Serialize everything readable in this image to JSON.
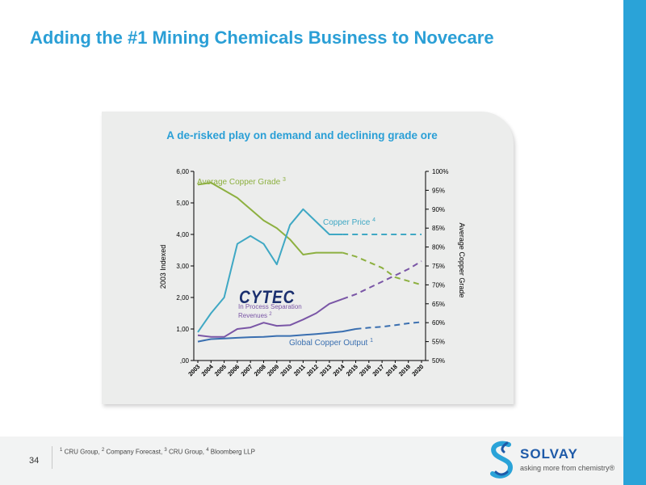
{
  "slide": {
    "title": "Adding the #1 Mining Chemicals Business to Novecare",
    "page_number": "34"
  },
  "footer": {
    "footnotes": [
      {
        "num": "1",
        "text": " CRU Group, "
      },
      {
        "num": "2",
        "text": " Company Forecast, "
      },
      {
        "num": "3",
        "text": " CRU Group, "
      },
      {
        "num": "4",
        "text": " Bloomberg LLP"
      }
    ],
    "logo": {
      "name": "SOLVAY",
      "tagline": "asking more from chemistry®",
      "mark_icon": "solvay-s-icon"
    }
  },
  "cytec_logo": {
    "text": "CYTEC"
  },
  "chart_data": {
    "type": "line",
    "title": "A de-risked play on demand and declining grade ore",
    "ylabel": "2003 Indexed",
    "y2label": "Average Copper Grade",
    "ylim": [
      0,
      6
    ],
    "y2lim": [
      50,
      100
    ],
    "yticks": [
      ",00",
      "1,00",
      "2,00",
      "3,00",
      "4,00",
      "5,00",
      "6,00"
    ],
    "y2ticks": [
      "50%",
      "55%",
      "60%",
      "65%",
      "70%",
      "75%",
      "80%",
      "85%",
      "90%",
      "95%",
      "100%"
    ],
    "x": [
      "2003",
      "2004",
      "2005",
      "2006",
      "2007",
      "2008",
      "2009",
      "2010",
      "2011",
      "2012",
      "2013",
      "2014",
      "2015",
      "2016",
      "2017",
      "2018",
      "2019",
      "2020"
    ],
    "grid": false,
    "legend": "inline labels",
    "series": [
      {
        "key": "grade",
        "label_main": "Average Copper Grade",
        "label_sup": "3",
        "axis": "right",
        "color": "#8db040",
        "values": [
          96.5,
          97.0,
          95.0,
          93.0,
          90.0,
          87.0,
          85.0,
          82.0,
          78.0,
          78.5,
          78.5,
          78.5,
          77.5,
          76.0,
          74.5,
          72.0,
          71.0,
          70.0
        ],
        "solid_until": "2014"
      },
      {
        "key": "price",
        "label_main": "Copper Price",
        "label_sup": "4",
        "axis": "left",
        "color": "#3fa8c4",
        "values": [
          0.9,
          1.5,
          2.0,
          3.7,
          3.95,
          3.7,
          3.05,
          4.3,
          4.8,
          4.4,
          4.0,
          4.0,
          4.0,
          4.0,
          4.0,
          4.0,
          4.0,
          4.0
        ],
        "solid_until": "2014"
      },
      {
        "key": "cytec",
        "label_main": "In Process Separation",
        "label_second": "Revenues",
        "label_sup": "2",
        "axis": "left",
        "color": "#7a56a6",
        "values": [
          0.8,
          0.75,
          0.75,
          1.0,
          1.05,
          1.2,
          1.1,
          1.12,
          1.3,
          1.5,
          1.8,
          1.95,
          2.1,
          2.3,
          2.5,
          2.7,
          2.9,
          3.15
        ],
        "solid_until": "2014"
      },
      {
        "key": "output",
        "label_main": "Global Copper Output",
        "label_sup": "1",
        "axis": "left",
        "color": "#3a6fb0",
        "values": [
          0.6,
          0.68,
          0.7,
          0.72,
          0.74,
          0.75,
          0.78,
          0.78,
          0.81,
          0.84,
          0.88,
          0.92,
          1.0,
          1.04,
          1.07,
          1.12,
          1.18,
          1.22
        ],
        "solid_until": "2015"
      }
    ]
  }
}
